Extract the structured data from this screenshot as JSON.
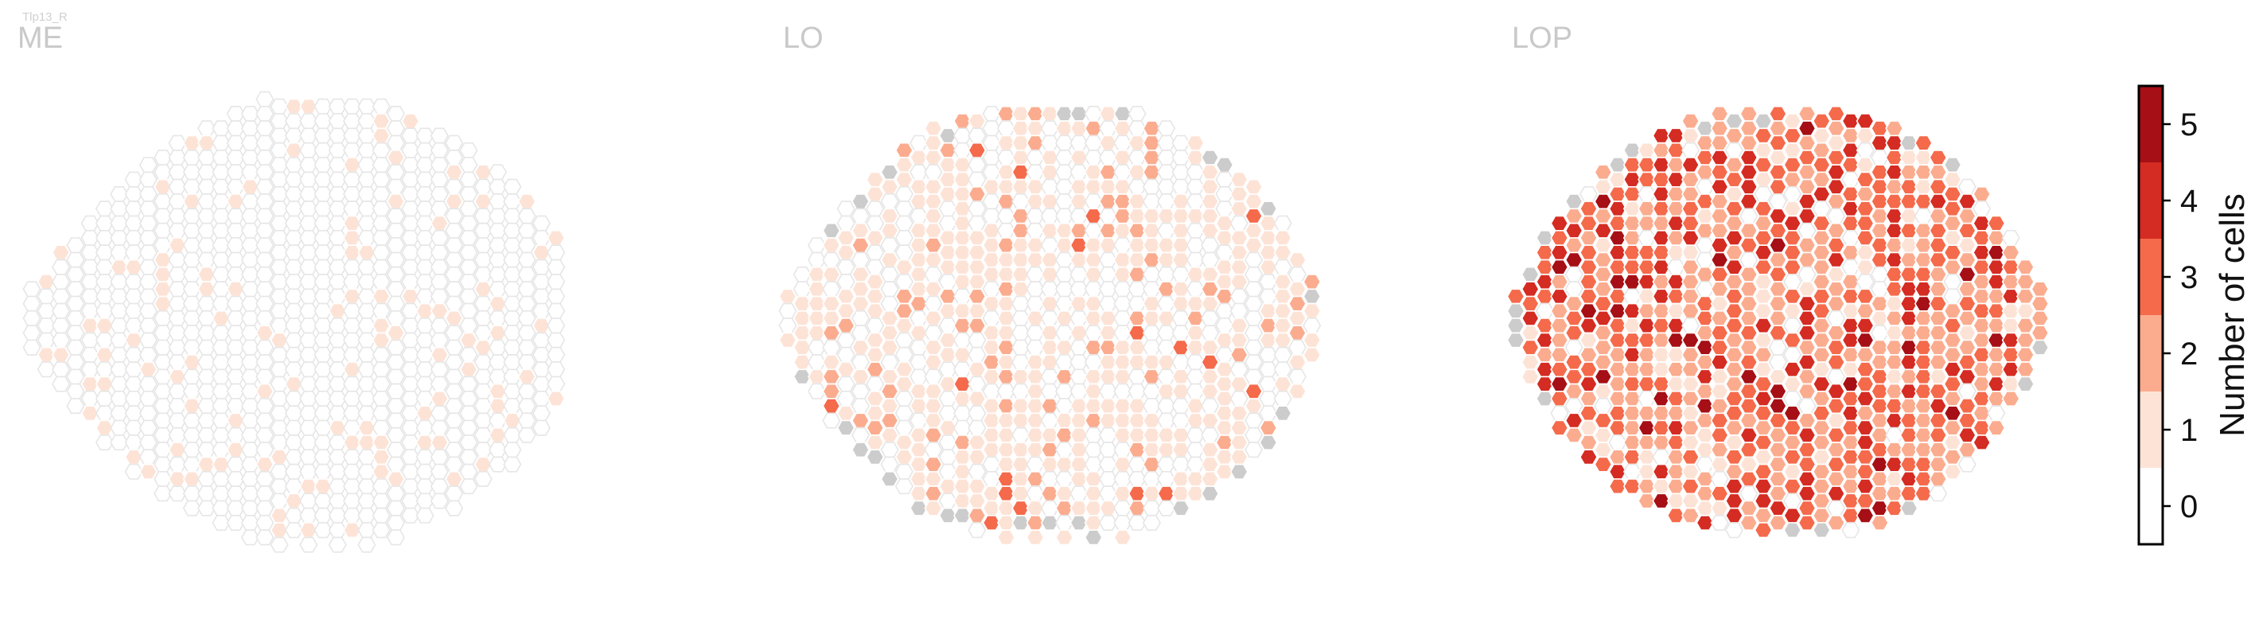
{
  "figure_label": "Tlp13_R",
  "chart_data": {
    "type": "heatmap",
    "layout": "hexagonal-grid",
    "panels": [
      {
        "name": "ME",
        "column_counts": [
          5,
          7,
          10,
          12,
          14,
          17,
          18,
          21,
          22,
          24,
          25,
          26,
          27,
          28,
          29,
          30,
          31,
          31,
          30,
          31,
          30,
          31,
          30,
          31,
          30,
          30,
          28,
          27,
          26,
          26,
          24,
          22,
          21,
          20,
          17,
          15,
          12
        ],
        "level_weights": [
          0.86,
          0.14,
          0,
          0,
          0,
          0
        ],
        "max_value": 1
      },
      {
        "name": "LO",
        "column_counts": [
          4,
          8,
          11,
          14,
          16,
          18,
          20,
          22,
          24,
          26,
          27,
          27,
          28,
          29,
          29,
          30,
          29,
          30,
          29,
          30,
          29,
          30,
          29,
          30,
          29,
          28,
          27,
          26,
          25,
          24,
          22,
          21,
          19,
          17,
          14,
          10,
          6
        ],
        "level_weights": [
          0.38,
          0.5,
          0.1,
          0.02,
          0,
          0
        ],
        "max_value": 3
      },
      {
        "name": "LOP",
        "column_counts": [
          4,
          8,
          12,
          15,
          17,
          19,
          21,
          23,
          24,
          25,
          26,
          27,
          28,
          28,
          29,
          29,
          29,
          29,
          29,
          29,
          29,
          29,
          29,
          29,
          28,
          28,
          27,
          26,
          25,
          24,
          22,
          20,
          18,
          15,
          12,
          9,
          5
        ],
        "level_weights": [
          0.1,
          0.14,
          0.3,
          0.3,
          0.12,
          0.04
        ],
        "max_value": 5
      }
    ],
    "colorbar": {
      "label": "Number of cells",
      "ticks": [
        0,
        1,
        2,
        3,
        4,
        5
      ],
      "range": [
        -0.5,
        5.5
      ],
      "colors": [
        "#ffffff",
        "#fde3d6",
        "#fbac8f",
        "#f46a4b",
        "#d42b22",
        "#a50f15"
      ]
    },
    "missing_color": "#cccccc",
    "empty_edge_color": "#e6e6e6",
    "cell_edge_color": "#ffffff"
  }
}
